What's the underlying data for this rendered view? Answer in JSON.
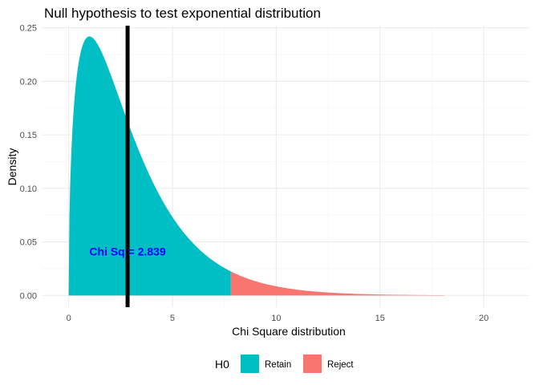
{
  "chart_data": {
    "type": "area",
    "title": "Null hypothesis to test exponential distribution",
    "xlabel": "Chi Square distribution",
    "ylabel": "Density",
    "distribution": "chi-square",
    "degrees_of_freedom": 3,
    "x_range": [
      0,
      18.1
    ],
    "critical_value": 7.815,
    "xlim": [
      -1.3,
      22.2
    ],
    "ylim": [
      -0.011,
      0.252
    ],
    "x_ticks": [
      0,
      5,
      10,
      15,
      20
    ],
    "x_tick_labels": [
      "0",
      "5",
      "10",
      "15",
      "20"
    ],
    "y_ticks": [
      0,
      0.05,
      0.1,
      0.15,
      0.2,
      0.25
    ],
    "y_tick_labels": [
      "0.00",
      "0.05",
      "0.10",
      "0.15",
      "0.20",
      "0.25"
    ],
    "grid": true,
    "series": [
      {
        "name": "Retain",
        "x_from": 0,
        "x_to": 7.815,
        "color": "#00BFC4"
      },
      {
        "name": "Reject",
        "x_from": 7.815,
        "x_to": 18.1,
        "color": "#F8766D"
      }
    ],
    "vline": {
      "x": 2.839,
      "color": "#000000"
    },
    "annotation": {
      "text": "Chi Sq = 2.839",
      "x": 2.839,
      "y": 0.04,
      "color": "#0000FF"
    },
    "legend": {
      "title": "H0",
      "position": "bottom",
      "items": [
        {
          "label": "Retain",
          "color": "#00BFC4"
        },
        {
          "label": "Reject",
          "color": "#F8766D"
        }
      ]
    }
  }
}
